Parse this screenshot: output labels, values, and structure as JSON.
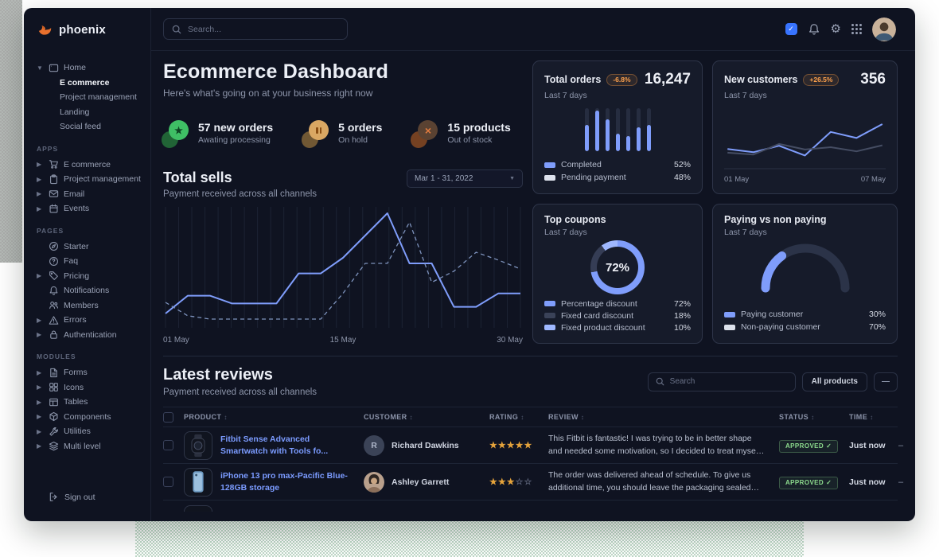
{
  "theme": {
    "accent_blue": "#7f9dfb",
    "link_blue": "#7b9bff",
    "badge_orange": "#ffa24d",
    "approved_green": "#8ddc8d",
    "star_orange": "#e5a33b",
    "white_swatch": "#dde2ec"
  },
  "brand": {
    "name": "phoenix"
  },
  "topbar": {
    "search_placeholder": "Search..."
  },
  "sidebar": {
    "home": {
      "label": "Home",
      "children": [
        "E commerce",
        "Project management",
        "Landing",
        "Social feed"
      ]
    },
    "sections": [
      {
        "title": "APPS",
        "items": [
          {
            "label": "E commerce"
          },
          {
            "label": "Project management"
          },
          {
            "label": "Email"
          },
          {
            "label": "Events"
          }
        ]
      },
      {
        "title": "PAGES",
        "items": [
          {
            "label": "Starter"
          },
          {
            "label": "Faq"
          },
          {
            "label": "Pricing"
          },
          {
            "label": "Notifications"
          },
          {
            "label": "Members"
          },
          {
            "label": "Errors"
          },
          {
            "label": "Authentication"
          }
        ]
      },
      {
        "title": "MODULES",
        "items": [
          {
            "label": "Forms"
          },
          {
            "label": "Icons"
          },
          {
            "label": "Tables"
          },
          {
            "label": "Components"
          },
          {
            "label": "Utilities"
          },
          {
            "label": "Multi level"
          }
        ]
      }
    ],
    "signout": "Sign out"
  },
  "main": {
    "title": "Ecommerce Dashboard",
    "subtitle": "Here's what's going on at your business right now",
    "stats": [
      {
        "value_label": "57 new orders",
        "caption": "Awating processing",
        "color": "#3fbf65",
        "icon_color": "#0d4423"
      },
      {
        "value_label": "5 orders",
        "caption": "On hold",
        "color": "#d9a763",
        "icon_color": "#8a4d12"
      },
      {
        "value_label": "15 products",
        "caption": "Out of stock",
        "color": "#5a4232",
        "icon_color": "#e07b3f"
      }
    ],
    "total_sells": {
      "title": "Total sells",
      "subtitle": "Payment received across all channels",
      "date_range": "Mar 1 - 31, 2022"
    }
  },
  "cards": {
    "total_orders": {
      "title": "Total orders",
      "badge": "-6.8%",
      "value": "16,247",
      "period": "Last 7 days",
      "legend": [
        {
          "label": "Completed",
          "value": "52%",
          "color": "#7f9dfb"
        },
        {
          "label": "Pending payment",
          "value": "48%",
          "color": "#dde2ec"
        }
      ]
    },
    "new_customers": {
      "title": "New customers",
      "badge": "+26.5%",
      "value": "356",
      "period": "Last 7 days"
    },
    "top_coupons": {
      "title": "Top coupons",
      "period": "Last 7 days",
      "legend": [
        {
          "label": "Percentage discount",
          "value": "72%",
          "color": "#7f9dfb"
        },
        {
          "label": "Fixed card discount",
          "value": "18%",
          "color": "#3a4258"
        },
        {
          "label": "Fixed product discount",
          "value": "10%",
          "color": "#9fb8ff"
        }
      ]
    },
    "paying": {
      "title": "Paying vs non paying",
      "period": "Last 7 days",
      "legend": [
        {
          "label": "Paying customer",
          "value": "30%",
          "color": "#7f9dfb"
        },
        {
          "label": "Non-paying customer",
          "value": "70%",
          "color": "#dde2ec"
        }
      ]
    }
  },
  "chart_data": [
    {
      "id": "total_sells",
      "type": "line",
      "title": "Total sells",
      "x_labels": [
        "01 May",
        "15 May",
        "30 May"
      ],
      "ylim": [
        0,
        100
      ],
      "gridlines": 28,
      "grid_color": "#1c2334",
      "series": [
        {
          "name": "current",
          "style": "solid",
          "color": "#7f9dfb",
          "values": [
            10,
            26,
            26,
            19,
            19,
            19,
            46,
            46,
            60,
            80,
            100,
            55,
            55,
            16,
            16,
            28,
            28
          ]
        },
        {
          "name": "previous",
          "style": "dashed",
          "color": "#7e93bd",
          "values": [
            20,
            8,
            5,
            5,
            5,
            5,
            5,
            5,
            28,
            55,
            55,
            92,
            38,
            48,
            65,
            58,
            50
          ]
        }
      ]
    },
    {
      "id": "total_orders",
      "type": "bar",
      "ylim": [
        0,
        100
      ],
      "values": [
        62,
        95,
        75,
        40,
        35,
        55,
        62
      ],
      "bar_color": "#7f9dfb",
      "track_color": "#262d40"
    },
    {
      "id": "new_customers",
      "type": "line",
      "ylim": [
        0,
        100
      ],
      "x_labels": [
        "01 May",
        "07 May"
      ],
      "series": [
        {
          "name": "current",
          "style": "solid",
          "color": "#7f9dfb",
          "values": [
            34,
            27,
            41,
            20,
            71,
            58,
            88
          ]
        },
        {
          "name": "previous",
          "style": "solid",
          "color": "#454d63",
          "values": [
            26,
            22,
            45,
            33,
            38,
            29,
            42
          ]
        }
      ]
    },
    {
      "id": "top_coupons",
      "type": "pie",
      "center_label": "72%",
      "segments": [
        {
          "label": "Percentage discount",
          "value": 72,
          "color": "#7f9dfb"
        },
        {
          "label": "Fixed card discount",
          "value": 18,
          "color": "#353d55"
        },
        {
          "label": "Fixed product discount",
          "value": 10,
          "color": "#9fb8ff"
        }
      ]
    },
    {
      "id": "paying_gauge",
      "type": "gauge",
      "segments": [
        {
          "label": "Paying customer",
          "value": 30,
          "color": "#7f9dfb"
        },
        {
          "label": "Non-paying customer",
          "value": 70,
          "color": "#2b3348"
        }
      ]
    }
  ],
  "reviews": {
    "title": "Latest reviews",
    "subtitle": "Payment received across all channels",
    "search_placeholder": "Search",
    "filter_button": "All products",
    "more_button": "—",
    "columns": [
      "PRODUCT",
      "CUSTOMER",
      "RATING",
      "REVIEW",
      "STATUS",
      "TIME"
    ],
    "rows": [
      {
        "product": "Fitbit Sense Advanced Smartwatch with Tools fo...",
        "customer": "Richard Dawkins",
        "avatar_initial": "R",
        "rating_value": 5,
        "rating_filled": "★★★★★",
        "rating_empty": "",
        "review": "This Fitbit is fantastic! I was trying to be in better shape and needed some motivation, so I decided to treat myself to a new Fitbit.",
        "status": "APPROVED",
        "time": "Just now",
        "more": "–"
      },
      {
        "product": "iPhone 13 pro max-Pacific Blue-128GB storage",
        "customer": "Ashley Garrett",
        "avatar_initial": "",
        "rating_value": 3,
        "rating_filled": "★★★",
        "rating_empty": "☆☆",
        "review": "The order was delivered ahead of schedule. To give us additional time, you should leave the packaging sealed with plastic.",
        "status": "APPROVED",
        "time": "Just now",
        "more": "–"
      }
    ]
  }
}
